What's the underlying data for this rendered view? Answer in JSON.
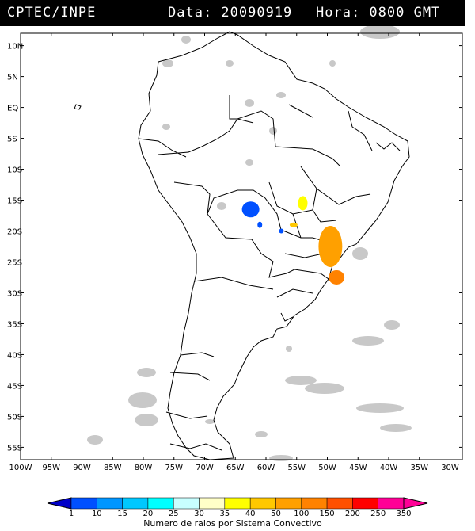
{
  "header": {
    "source": "CPTEC/INPE",
    "date_label": "Data: 20090919",
    "hour_label": "Hora: 0800 GMT"
  },
  "map": {
    "lat_labels": [
      "10N",
      "5N",
      "EQ",
      "5S",
      "10S",
      "15S",
      "20S",
      "25S",
      "30S",
      "35S",
      "40S",
      "45S",
      "50S",
      "55S"
    ],
    "lon_labels": [
      "100W",
      "95W",
      "90W",
      "85W",
      "80W",
      "75W",
      "70W",
      "65W",
      "60W",
      "55W",
      "50W",
      "45W",
      "40W",
      "35W",
      "30W"
    ],
    "lon_range": [
      -100,
      -28
    ],
    "lat_range": [
      -57,
      12
    ]
  },
  "legend": {
    "values": [
      "1",
      "10",
      "15",
      "20",
      "25",
      "30",
      "35",
      "40",
      "50",
      "100",
      "150",
      "200",
      "250",
      "350"
    ],
    "colors": [
      "#0000c8",
      "#0050ff",
      "#0096ff",
      "#00c8ff",
      "#00ffff",
      "#c8ffff",
      "#ffffc8",
      "#ffff00",
      "#ffc800",
      "#ffa000",
      "#ff8200",
      "#ff5000",
      "#ff0000",
      "#ff0096",
      "#ff0096"
    ],
    "title": "Numero de raios por Sistema Convectivo"
  },
  "storm_systems": [
    {
      "lon": -62.5,
      "lat": -16.5,
      "color": "#0050ff"
    },
    {
      "lon": -61.0,
      "lat": -19.0,
      "color": "#0050ff"
    },
    {
      "lon": -57.5,
      "lat": -20.0,
      "color": "#0050ff"
    },
    {
      "lon": -54.0,
      "lat": -15.5,
      "color": "#ffff00"
    },
    {
      "lon": -55.5,
      "lat": -19.0,
      "color": "#ffc800"
    },
    {
      "lon": -49.5,
      "lat": -22.5,
      "color": "#ffa000"
    },
    {
      "lon": -48.5,
      "lat": -27.5,
      "color": "#ff8200"
    }
  ]
}
